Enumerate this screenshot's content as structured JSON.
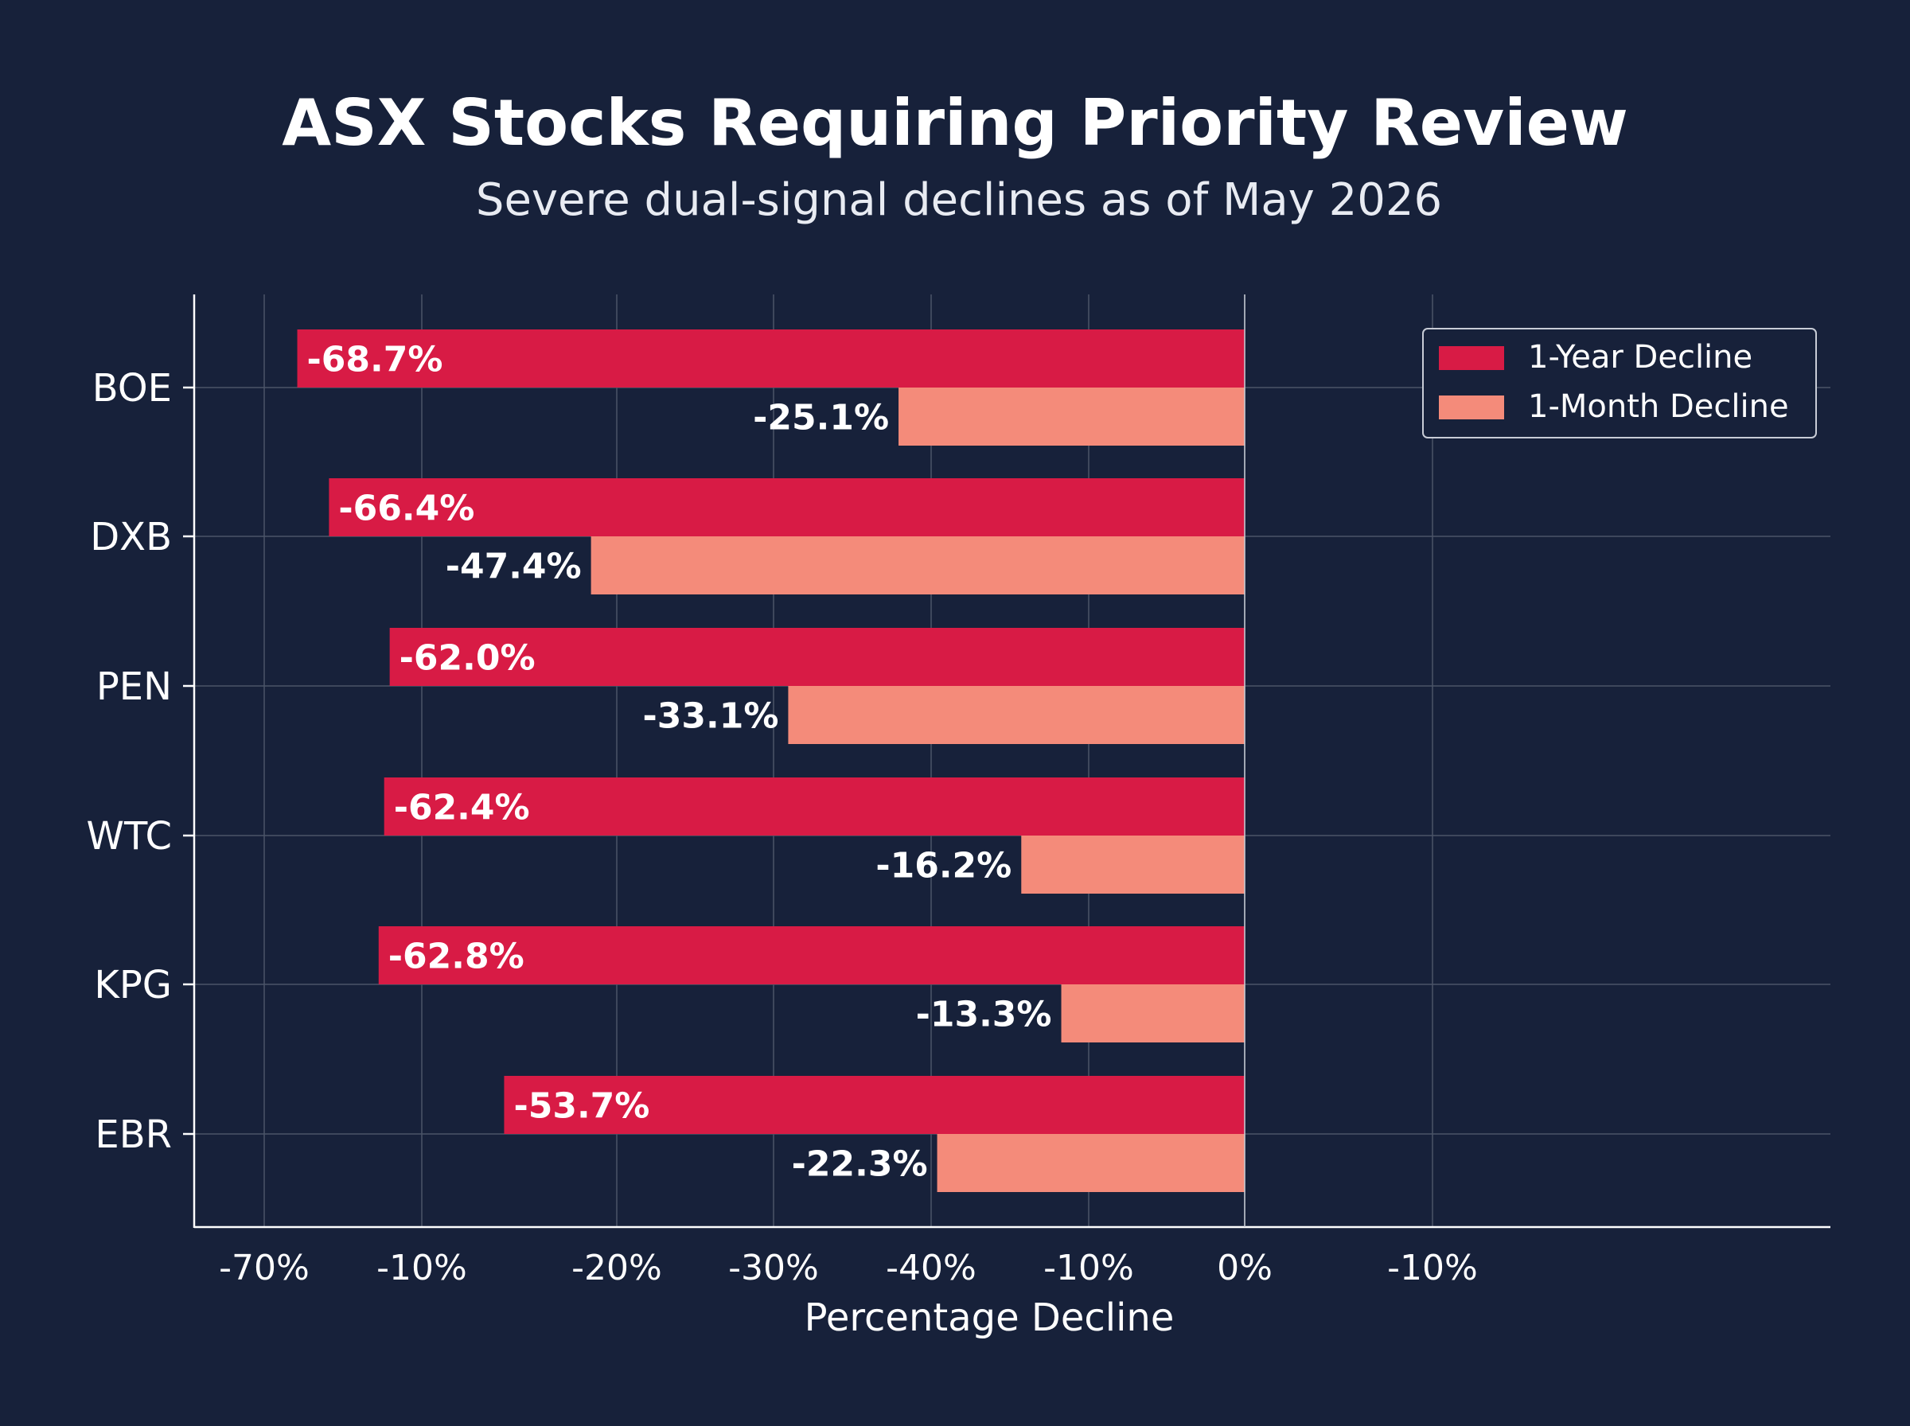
{
  "colors": {
    "background": "#17213a",
    "year_bar": "#d81b45",
    "month_bar": "#f48b7a",
    "text": "#ffffff",
    "grid": "#4b5468"
  },
  "chart_data": {
    "type": "bar",
    "orientation": "horizontal",
    "title": "ASX Stocks Requiring Priority Review",
    "subtitle": "Severe dual-signal declines as of May 2026",
    "xlabel": "Percentage Decline",
    "ylabel": "",
    "xlim": [
      -70,
      10
    ],
    "x_tick_labels": [
      "-70%",
      "-10%",
      "-20%",
      "-30%",
      "-40%",
      "-10%",
      "0%",
      "-10%"
    ],
    "grid": true,
    "legend_position": "top-right",
    "categories": [
      "BOE",
      "DXB",
      "PEN",
      "WTC",
      "KPG",
      "EBR"
    ],
    "series": [
      {
        "name": "1-Year Decline",
        "color": "#d81b45",
        "values": [
          -68.7,
          -66.4,
          -62.0,
          -62.4,
          -62.8,
          -53.7
        ],
        "labels": [
          "-68.7%",
          "-66.4%",
          "-62.0%",
          "-62.4%",
          "-62.8%",
          "-53.7%"
        ]
      },
      {
        "name": "1-Month Decline",
        "color": "#f48b7a",
        "values": [
          -25.1,
          -47.4,
          -33.1,
          -16.2,
          -13.3,
          -22.3
        ],
        "labels": [
          "-25.1%",
          "-47.4%",
          "-33.1%",
          "-16.2%",
          "-13.3%",
          "-22.3%"
        ]
      }
    ]
  }
}
